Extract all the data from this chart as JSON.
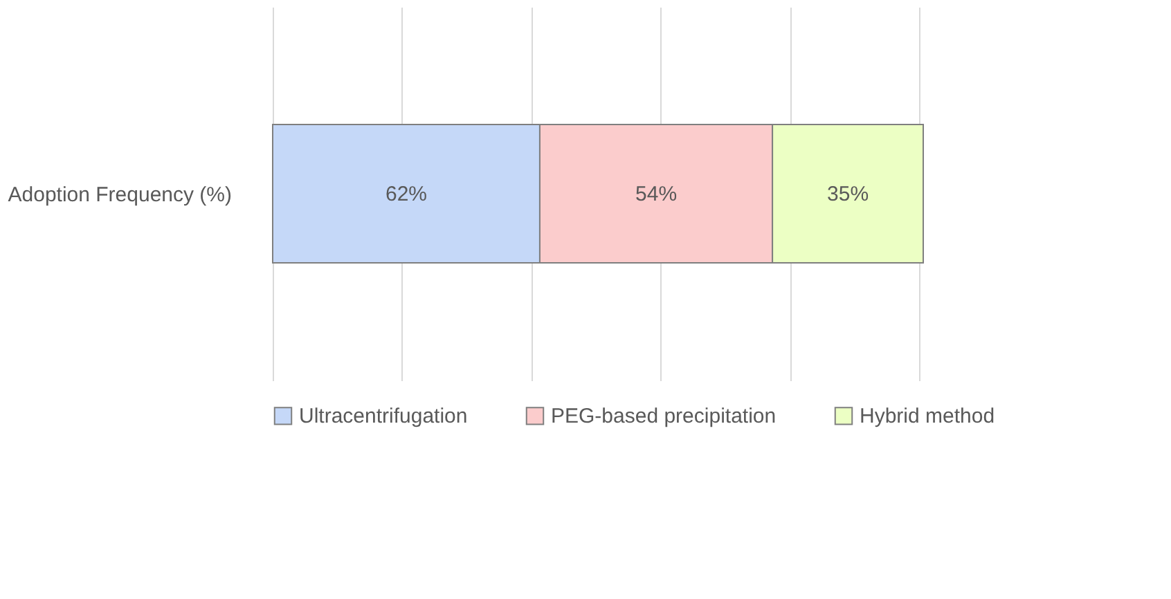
{
  "chart_data": {
    "type": "bar",
    "orientation": "horizontal",
    "stacked": true,
    "categories": [
      "Adoption Frequency (%)"
    ],
    "series": [
      {
        "name": "Ultracentrifugation",
        "color": "#c5d8f8",
        "values": [
          62
        ],
        "value_labels": [
          "62%"
        ]
      },
      {
        "name": "PEG-based precipitation",
        "color": "#fbcccc",
        "values": [
          54
        ],
        "value_labels": [
          "54%"
        ]
      },
      {
        "name": "Hybrid method",
        "color": "#ecffc4",
        "values": [
          35
        ],
        "value_labels": [
          "35%"
        ]
      }
    ],
    "xticks": [
      {
        "value": 0,
        "label": null
      },
      {
        "value": 30,
        "label": null
      },
      {
        "value": 60,
        "label": null
      },
      {
        "value": 90,
        "label": null
      },
      {
        "value": 120,
        "label": null
      },
      {
        "value": 150,
        "label": null
      }
    ],
    "tick_labels": "y",
    "grid": "x",
    "legend": "bottom"
  }
}
